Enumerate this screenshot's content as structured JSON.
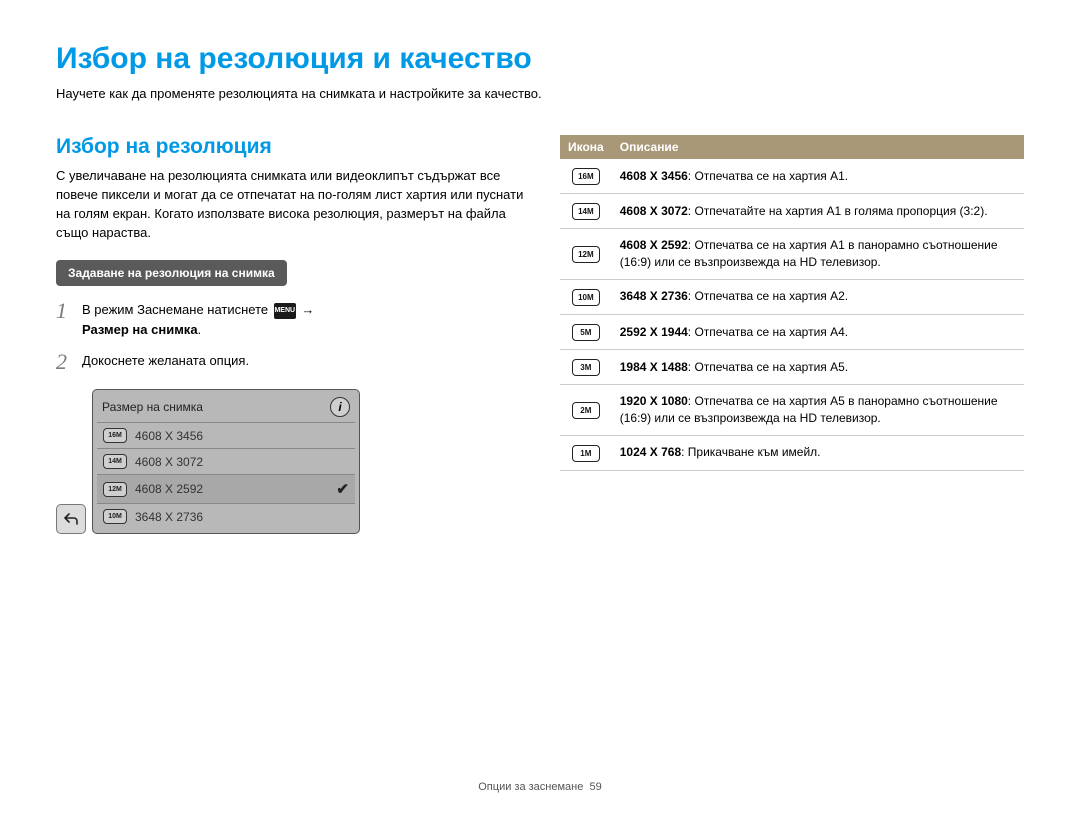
{
  "page": {
    "title": "Избор на резолюция и качество",
    "intro": "Научете как да променяте резолюцията на снимката и настройките за качество."
  },
  "left": {
    "heading": "Избор на резолюция",
    "paragraph": "С увеличаване на резолюцията снимката или видеоклипът съдържат все повече пиксели и могат да се отпечатат на по-голям лист хартия или пуснати на голям екран. Когато използвате висока резолюция, размерът на файла също нараства.",
    "pill": "Задаване на резолюция на снимка",
    "step1_a": "В режим Заснемане натиснете ",
    "menu_chip": "MENU",
    "step1_arrow": " → ",
    "step1_b": "Размер на снимка",
    "step1_dot": ".",
    "step2": "Докоснете желаната опция.",
    "screenshot": {
      "title": "Размер на снимка",
      "items": [
        {
          "icon": "16M",
          "label": "4608 X 3456"
        },
        {
          "icon": "14M",
          "label": "4608 X 3072"
        },
        {
          "icon": "12M",
          "label": "4608 X 2592"
        },
        {
          "icon": "10M",
          "label": "3648 X 2736"
        }
      ],
      "selected_index": 2
    }
  },
  "table": {
    "header_icon": "Икона",
    "header_desc": "Описание",
    "rows": [
      {
        "icon": "16M",
        "res": "4608 X 3456",
        "desc": ": Отпечатва се на хартия A1."
      },
      {
        "icon": "14M",
        "res": "4608 X 3072",
        "desc": ": Отпечатайте на хартия A1 в голяма пропорция (3:2)."
      },
      {
        "icon": "12M",
        "res": "4608 X 2592",
        "desc": ": Отпечатва се на хартия A1 в панорамно съотношение (16:9) или се възпроизвежда на HD телевизор."
      },
      {
        "icon": "10M",
        "res": "3648 X 2736",
        "desc": ": Отпечатва се на хартия A2."
      },
      {
        "icon": "5M",
        "res": "2592 X 1944",
        "desc": ": Отпечатва се на хартия A4."
      },
      {
        "icon": "3M",
        "res": "1984 X 1488",
        "desc": ": Отпечатва се на хартия A5."
      },
      {
        "icon": "2M",
        "res": "1920 X 1080",
        "desc": ": Отпечатва се на хартия A5 в панорамно съотношение (16:9) или се възпроизвежда на HD телевизор."
      },
      {
        "icon": "1M",
        "res": "1024 X 768",
        "desc": ": Прикачване към имейл."
      }
    ]
  },
  "footer": {
    "label": "Опции за заснемане",
    "page": "59"
  }
}
